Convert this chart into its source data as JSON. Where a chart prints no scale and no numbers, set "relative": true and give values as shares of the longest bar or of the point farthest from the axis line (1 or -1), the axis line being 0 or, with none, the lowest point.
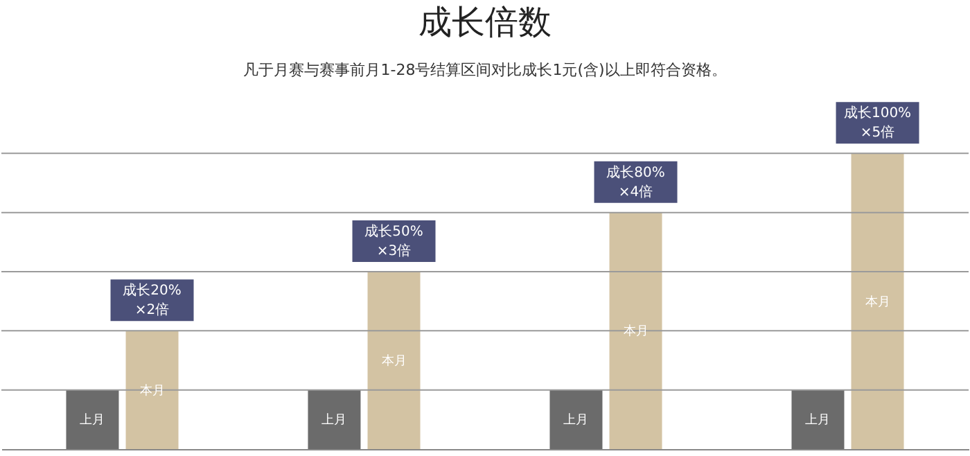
{
  "chart_data": {
    "type": "bar",
    "title": "成长倍数",
    "subtitle": "凡于月赛与赛事前月1-28号结算区间对比成长1元(含)以上即符合资格。",
    "relative": true,
    "categories": [
      null,
      null,
      null,
      null
    ],
    "series": [
      {
        "name": "上月",
        "color": "#6b6b6b",
        "values": [
          0.2,
          0.2,
          0.2,
          0.2
        ]
      },
      {
        "name": "本月",
        "color": "#d3c3a3",
        "values": [
          0.4,
          0.6,
          0.8,
          1.0
        ]
      }
    ],
    "annotations": [
      "成长20% ×2倍",
      "成长50% ×3倍",
      "成长80% ×4倍",
      "成长100% ×5倍"
    ],
    "grid": "y",
    "tick_labels": false,
    "legend": false
  }
}
